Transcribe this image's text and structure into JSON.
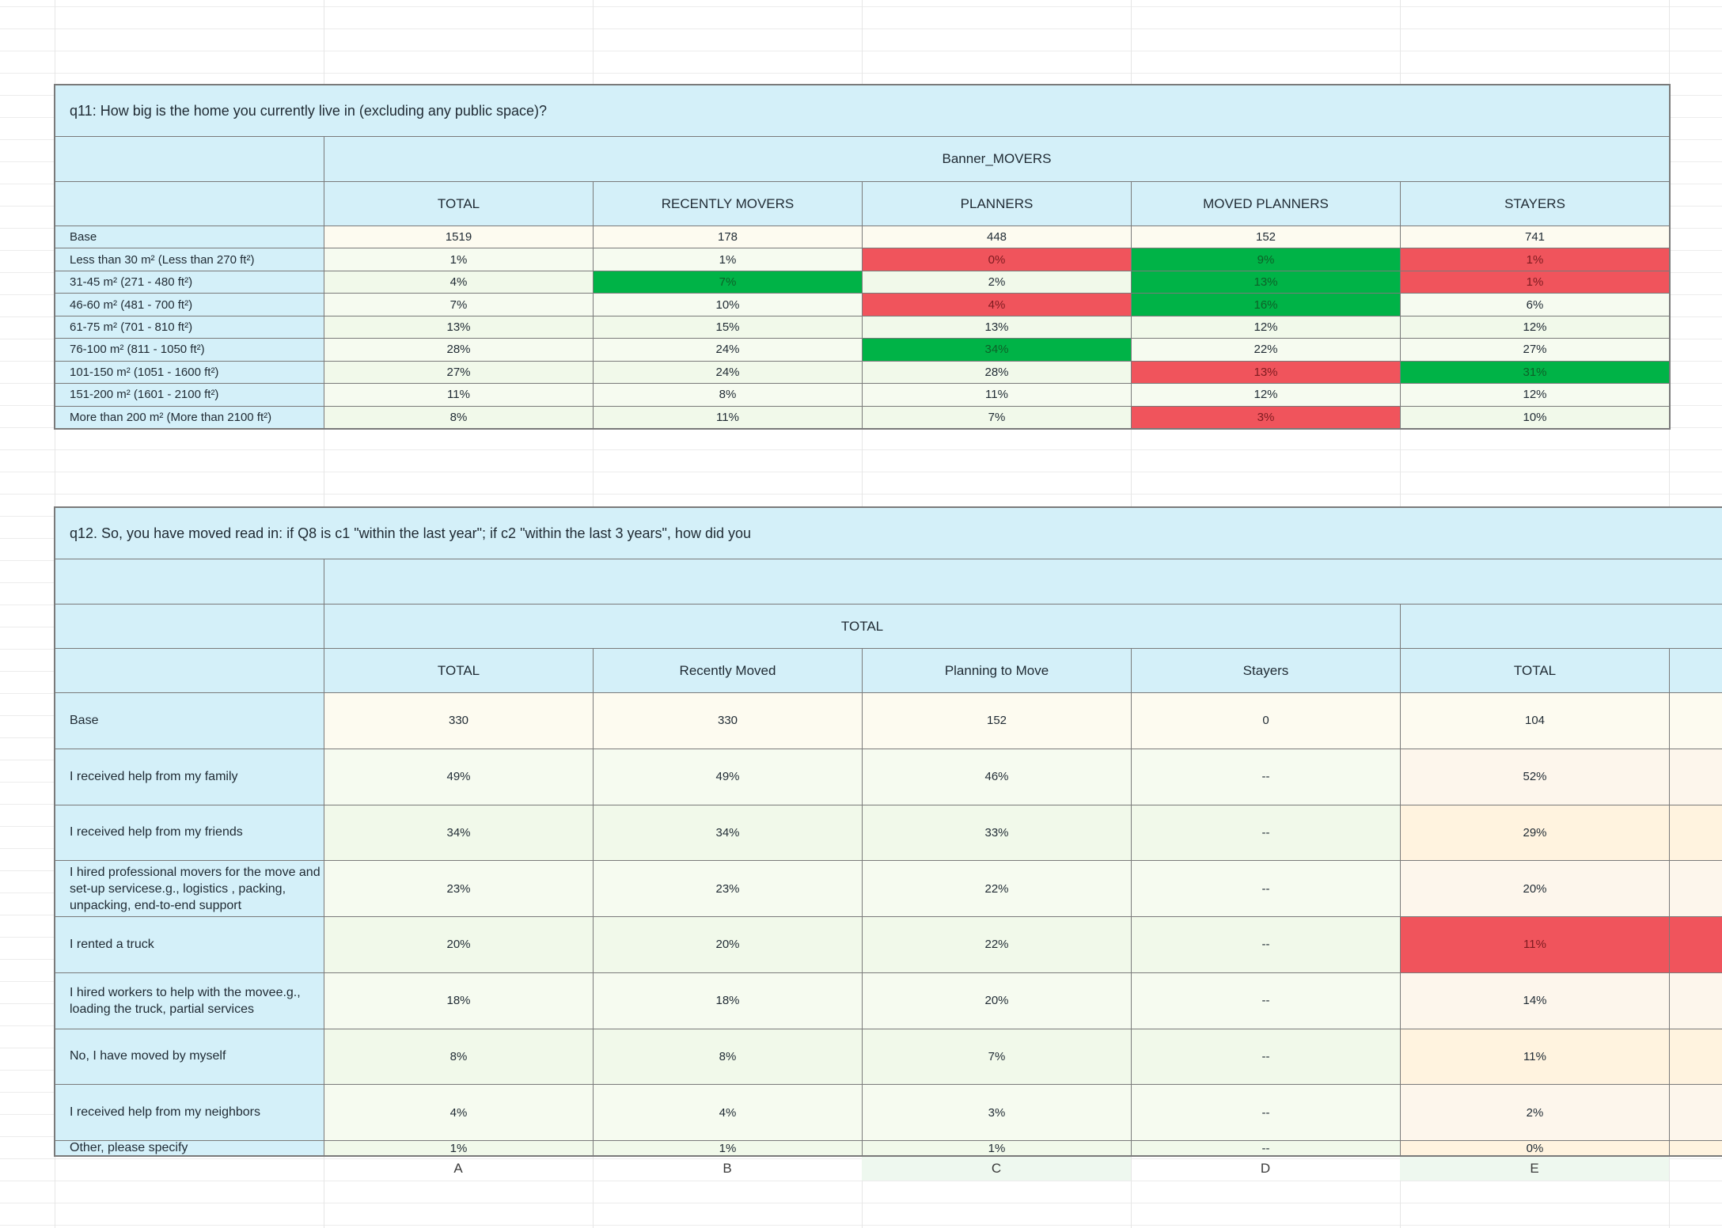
{
  "q11": {
    "title": "q11: How big is the home you currently live in (excluding any public space)?",
    "banner": "Banner_MOVERS",
    "columns": [
      "TOTAL",
      "RECENTLY MOVERS",
      "PLANNERS",
      "MOVED PLANNERS",
      "STAYERS"
    ],
    "rows": [
      {
        "label": "Base",
        "values": [
          "1519",
          "178",
          "448",
          "152",
          "741"
        ]
      },
      {
        "label": "Less than 30 m² (Less than 270 ft²)",
        "values": [
          "1%",
          "1%",
          "0%",
          "9%",
          "1%"
        ]
      },
      {
        "label": "31-45 m² (271 - 480 ft²)",
        "values": [
          "4%",
          "7%",
          "2%",
          "13%",
          "1%"
        ]
      },
      {
        "label": "46-60 m² (481 - 700 ft²)",
        "values": [
          "7%",
          "10%",
          "4%",
          "16%",
          "6%"
        ]
      },
      {
        "label": "61-75 m² (701 - 810 ft²)",
        "values": [
          "13%",
          "15%",
          "13%",
          "12%",
          "12%"
        ]
      },
      {
        "label": "76-100 m² (811 - 1050 ft²)",
        "values": [
          "28%",
          "24%",
          "34%",
          "22%",
          "27%"
        ]
      },
      {
        "label": "101-150 m² (1051 - 1600 ft²)",
        "values": [
          "27%",
          "24%",
          "28%",
          "13%",
          "31%"
        ]
      },
      {
        "label": "151-200 m² (1601 - 2100 ft²)",
        "values": [
          "11%",
          "8%",
          "11%",
          "12%",
          "12%"
        ]
      },
      {
        "label": "More than 200 m² (More than 2100 ft²)",
        "values": [
          "8%",
          "11%",
          "7%",
          "3%",
          "10%"
        ]
      }
    ]
  },
  "q12": {
    "title": "q12. So, you have moved read in: if Q8 is c1 \"within the last year\"; if c2 \"within the last 3 years\", how did you",
    "group_total": "TOTAL",
    "columns": [
      "TOTAL",
      "Recently Moved",
      "Planning to Move",
      "Stayers",
      "TOTAL"
    ],
    "rows": [
      {
        "label": "Base",
        "values": [
          "330",
          "330",
          "152",
          "0",
          "104"
        ]
      },
      {
        "label": "I received help from my family",
        "values": [
          "49%",
          "49%",
          "46%",
          "--",
          "52%"
        ]
      },
      {
        "label": "I received help from my friends",
        "values": [
          "34%",
          "34%",
          "33%",
          "--",
          "29%"
        ]
      },
      {
        "label": "I hired professional movers for the move and set-up servicese.g., logistics , packing, unpacking, end-to-end support",
        "values": [
          "23%",
          "23%",
          "22%",
          "--",
          "20%"
        ]
      },
      {
        "label": "I rented a truck",
        "values": [
          "20%",
          "20%",
          "22%",
          "--",
          "11%"
        ]
      },
      {
        "label": "I hired workers to help with the movee.g., loading the truck, partial services",
        "values": [
          "18%",
          "18%",
          "20%",
          "--",
          "14%"
        ]
      },
      {
        "label": "No, I have moved by myself",
        "values": [
          "8%",
          "8%",
          "7%",
          "--",
          "11%"
        ]
      },
      {
        "label": "I received help from my neighbors",
        "values": [
          "4%",
          "4%",
          "3%",
          "--",
          "2%"
        ]
      },
      {
        "label": "Other, please specify",
        "values": [
          "1%",
          "1%",
          "1%",
          "--",
          "0%"
        ]
      }
    ]
  },
  "column_letters": [
    "A",
    "B",
    "C",
    "D",
    "E"
  ],
  "colors": {
    "significant_low": "#f0545c",
    "significant_high": "#00b347",
    "header": "#d4f0f9"
  }
}
